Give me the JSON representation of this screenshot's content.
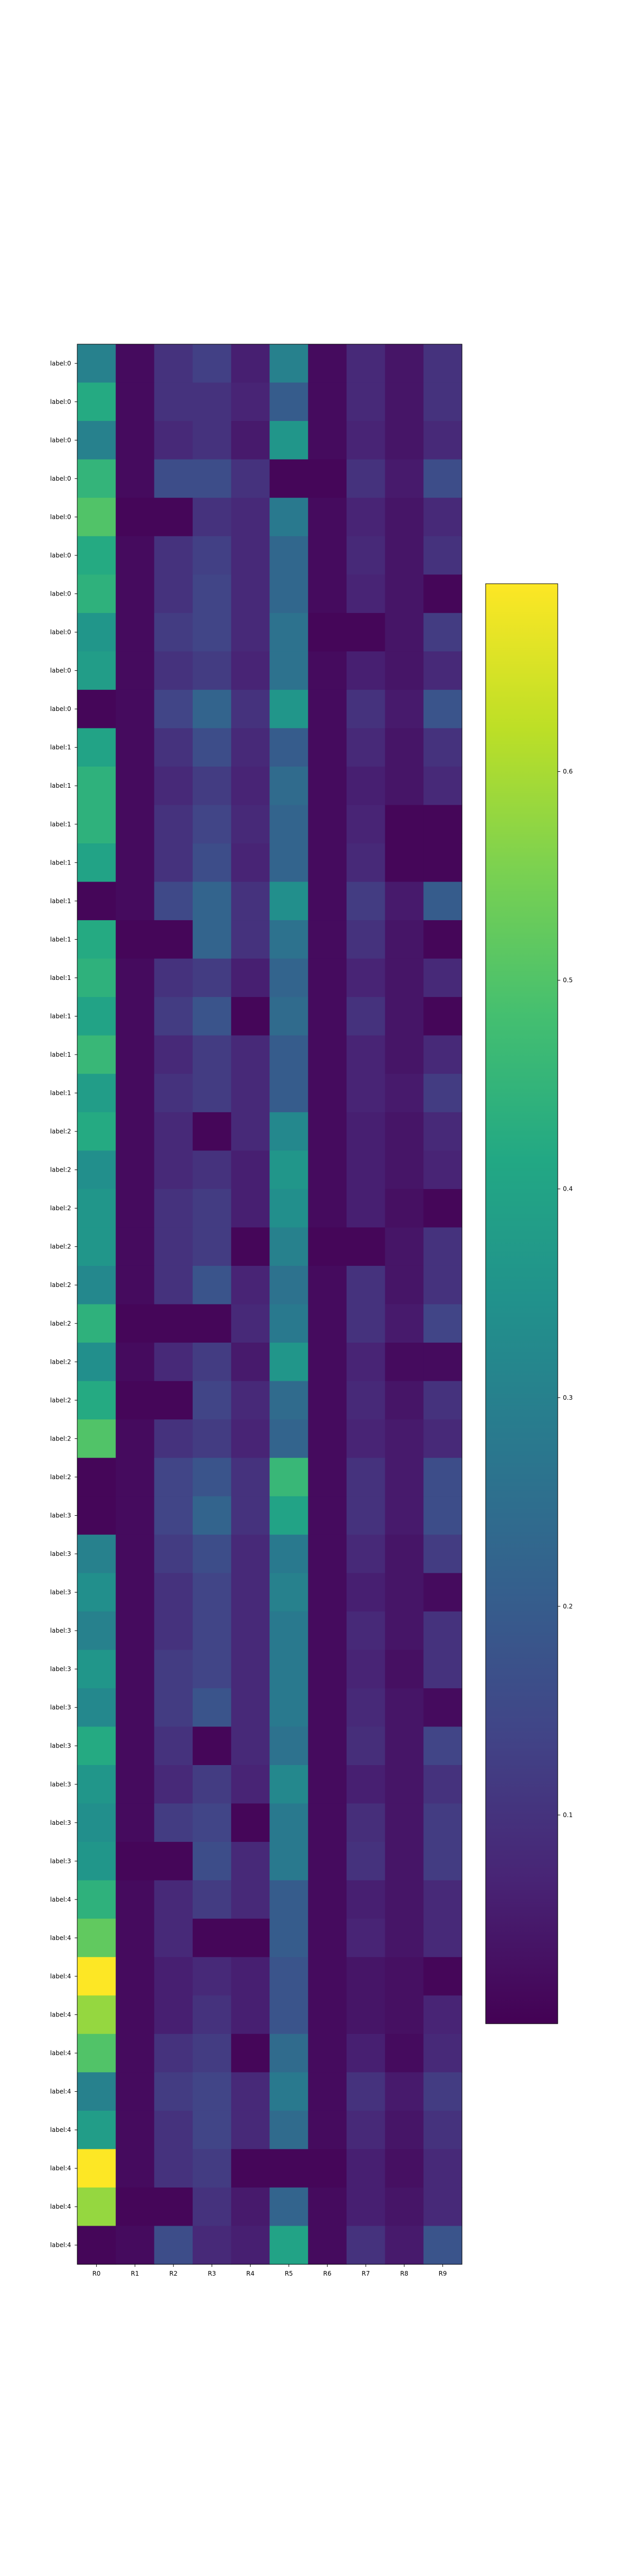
{
  "chart_data": [
    {
      "type": "heatmap",
      "title": "",
      "xlabel": "",
      "ylabel": "",
      "colormap": "viridis",
      "x": [
        "R0",
        "R1",
        "R2",
        "R3",
        "R4",
        "R5",
        "R6",
        "R7",
        "R8",
        "R9"
      ],
      "y": [
        "label:0",
        "label:0",
        "label:0",
        "label:0",
        "label:0",
        "label:0",
        "label:0",
        "label:0",
        "label:0",
        "label:0",
        "label:1",
        "label:1",
        "label:1",
        "label:1",
        "label:1",
        "label:1",
        "label:1",
        "label:1",
        "label:1",
        "label:1",
        "label:2",
        "label:2",
        "label:2",
        "label:2",
        "label:2",
        "label:2",
        "label:2",
        "label:2",
        "label:2",
        "label:2",
        "label:3",
        "label:3",
        "label:3",
        "label:3",
        "label:3",
        "label:3",
        "label:3",
        "label:3",
        "label:3",
        "label:3",
        "label:4",
        "label:4",
        "label:4",
        "label:4",
        "label:4",
        "label:4",
        "label:4",
        "label:4",
        "label:4",
        "label:4"
      ],
      "z": [
        [
          0.3,
          0.02,
          0.1,
          0.13,
          0.06,
          0.3,
          0.02,
          0.08,
          0.04,
          0.1
        ],
        [
          0.42,
          0.02,
          0.1,
          0.1,
          0.07,
          0.2,
          0.02,
          0.08,
          0.04,
          0.1
        ],
        [
          0.3,
          0.02,
          0.08,
          0.1,
          0.05,
          0.36,
          0.02,
          0.07,
          0.04,
          0.08
        ],
        [
          0.45,
          0.02,
          0.16,
          0.16,
          0.1,
          0.01,
          0.01,
          0.1,
          0.05,
          0.16
        ],
        [
          0.5,
          0.01,
          0.01,
          0.1,
          0.08,
          0.28,
          0.02,
          0.07,
          0.04,
          0.08
        ],
        [
          0.42,
          0.02,
          0.1,
          0.13,
          0.08,
          0.23,
          0.02,
          0.08,
          0.04,
          0.1
        ],
        [
          0.44,
          0.02,
          0.1,
          0.14,
          0.08,
          0.23,
          0.02,
          0.07,
          0.04,
          0.01
        ],
        [
          0.36,
          0.02,
          0.12,
          0.14,
          0.08,
          0.26,
          0.01,
          0.01,
          0.04,
          0.12
        ],
        [
          0.38,
          0.02,
          0.1,
          0.12,
          0.07,
          0.26,
          0.02,
          0.06,
          0.04,
          0.08
        ],
        [
          0.01,
          0.02,
          0.14,
          0.22,
          0.1,
          0.36,
          0.02,
          0.1,
          0.05,
          0.18
        ],
        [
          0.4,
          0.02,
          0.1,
          0.16,
          0.08,
          0.2,
          0.02,
          0.08,
          0.04,
          0.1
        ],
        [
          0.44,
          0.02,
          0.08,
          0.12,
          0.07,
          0.24,
          0.02,
          0.06,
          0.04,
          0.08
        ],
        [
          0.44,
          0.02,
          0.1,
          0.14,
          0.08,
          0.22,
          0.02,
          0.07,
          0.01,
          0.01
        ],
        [
          0.4,
          0.02,
          0.1,
          0.16,
          0.07,
          0.22,
          0.02,
          0.08,
          0.01,
          0.01
        ],
        [
          0.01,
          0.02,
          0.15,
          0.22,
          0.1,
          0.34,
          0.02,
          0.12,
          0.05,
          0.2
        ],
        [
          0.42,
          0.01,
          0.01,
          0.22,
          0.1,
          0.26,
          0.02,
          0.1,
          0.04,
          0.01
        ],
        [
          0.44,
          0.02,
          0.1,
          0.12,
          0.06,
          0.22,
          0.02,
          0.07,
          0.04,
          0.08
        ],
        [
          0.4,
          0.02,
          0.12,
          0.18,
          0.01,
          0.24,
          0.02,
          0.1,
          0.04,
          0.01
        ],
        [
          0.46,
          0.02,
          0.08,
          0.12,
          0.08,
          0.2,
          0.02,
          0.07,
          0.04,
          0.08
        ],
        [
          0.38,
          0.02,
          0.1,
          0.12,
          0.08,
          0.2,
          0.02,
          0.07,
          0.05,
          0.12
        ],
        [
          0.42,
          0.02,
          0.08,
          0.01,
          0.08,
          0.32,
          0.02,
          0.06,
          0.04,
          0.08
        ],
        [
          0.34,
          0.02,
          0.08,
          0.1,
          0.06,
          0.36,
          0.02,
          0.06,
          0.04,
          0.07
        ],
        [
          0.36,
          0.02,
          0.1,
          0.12,
          0.06,
          0.34,
          0.02,
          0.06,
          0.03,
          0.01
        ],
        [
          0.36,
          0.02,
          0.1,
          0.12,
          0.01,
          0.3,
          0.01,
          0.01,
          0.04,
          0.1
        ],
        [
          0.32,
          0.02,
          0.1,
          0.18,
          0.07,
          0.26,
          0.02,
          0.1,
          0.04,
          0.1
        ],
        [
          0.44,
          0.01,
          0.01,
          0.01,
          0.08,
          0.28,
          0.02,
          0.1,
          0.05,
          0.14
        ],
        [
          0.34,
          0.02,
          0.08,
          0.12,
          0.05,
          0.36,
          0.02,
          0.07,
          0.02,
          0.02
        ],
        [
          0.42,
          0.01,
          0.01,
          0.14,
          0.08,
          0.24,
          0.02,
          0.08,
          0.04,
          0.1
        ],
        [
          0.5,
          0.02,
          0.1,
          0.12,
          0.07,
          0.22,
          0.02,
          0.07,
          0.05,
          0.08
        ],
        [
          0.01,
          0.02,
          0.14,
          0.18,
          0.1,
          0.46,
          0.02,
          0.1,
          0.05,
          0.16
        ],
        [
          0.01,
          0.02,
          0.14,
          0.22,
          0.1,
          0.4,
          0.02,
          0.1,
          0.05,
          0.16
        ],
        [
          0.3,
          0.02,
          0.12,
          0.16,
          0.08,
          0.28,
          0.02,
          0.08,
          0.04,
          0.12
        ],
        [
          0.34,
          0.02,
          0.1,
          0.14,
          0.08,
          0.3,
          0.02,
          0.06,
          0.04,
          0.02
        ],
        [
          0.3,
          0.02,
          0.1,
          0.14,
          0.08,
          0.28,
          0.02,
          0.08,
          0.04,
          0.1
        ],
        [
          0.36,
          0.02,
          0.12,
          0.14,
          0.08,
          0.28,
          0.02,
          0.07,
          0.03,
          0.1
        ],
        [
          0.32,
          0.02,
          0.12,
          0.18,
          0.08,
          0.28,
          0.02,
          0.08,
          0.04,
          0.02
        ],
        [
          0.42,
          0.02,
          0.1,
          0.01,
          0.08,
          0.26,
          0.02,
          0.09,
          0.04,
          0.14
        ],
        [
          0.36,
          0.02,
          0.08,
          0.12,
          0.07,
          0.32,
          0.02,
          0.06,
          0.04,
          0.1
        ],
        [
          0.34,
          0.02,
          0.12,
          0.14,
          0.01,
          0.28,
          0.02,
          0.09,
          0.04,
          0.12
        ],
        [
          0.36,
          0.01,
          0.01,
          0.16,
          0.08,
          0.28,
          0.02,
          0.1,
          0.04,
          0.12
        ],
        [
          0.44,
          0.02,
          0.08,
          0.12,
          0.08,
          0.2,
          0.02,
          0.06,
          0.04,
          0.08
        ],
        [
          0.52,
          0.02,
          0.08,
          0.01,
          0.01,
          0.2,
          0.02,
          0.07,
          0.04,
          0.08
        ],
        [
          0.69,
          0.02,
          0.06,
          0.08,
          0.06,
          0.18,
          0.02,
          0.04,
          0.03,
          0.01
        ],
        [
          0.58,
          0.02,
          0.06,
          0.1,
          0.06,
          0.18,
          0.02,
          0.04,
          0.03,
          0.07
        ],
        [
          0.5,
          0.02,
          0.1,
          0.12,
          0.01,
          0.24,
          0.02,
          0.06,
          0.02,
          0.08
        ],
        [
          0.3,
          0.02,
          0.12,
          0.14,
          0.08,
          0.28,
          0.02,
          0.1,
          0.05,
          0.12
        ],
        [
          0.38,
          0.02,
          0.1,
          0.14,
          0.08,
          0.24,
          0.02,
          0.08,
          0.04,
          0.1
        ],
        [
          0.69,
          0.02,
          0.1,
          0.12,
          0.01,
          0.01,
          0.01,
          0.06,
          0.03,
          0.08
        ],
        [
          0.58,
          0.01,
          0.01,
          0.1,
          0.05,
          0.22,
          0.02,
          0.06,
          0.04,
          0.08
        ],
        [
          0.01,
          0.02,
          0.16,
          0.08,
          0.06,
          0.4,
          0.02,
          0.1,
          0.05,
          0.18
        ]
      ],
      "colorbar": {
        "ticks": [
          0.1,
          0.2,
          0.3,
          0.4,
          0.5,
          0.6
        ],
        "tick_labels": [
          "0.1",
          "0.2",
          "0.3",
          "0.4",
          "0.5",
          "0.6"
        ],
        "range": [
          0.0,
          0.69
        ]
      },
      "grid": false,
      "legend": "none"
    }
  ]
}
